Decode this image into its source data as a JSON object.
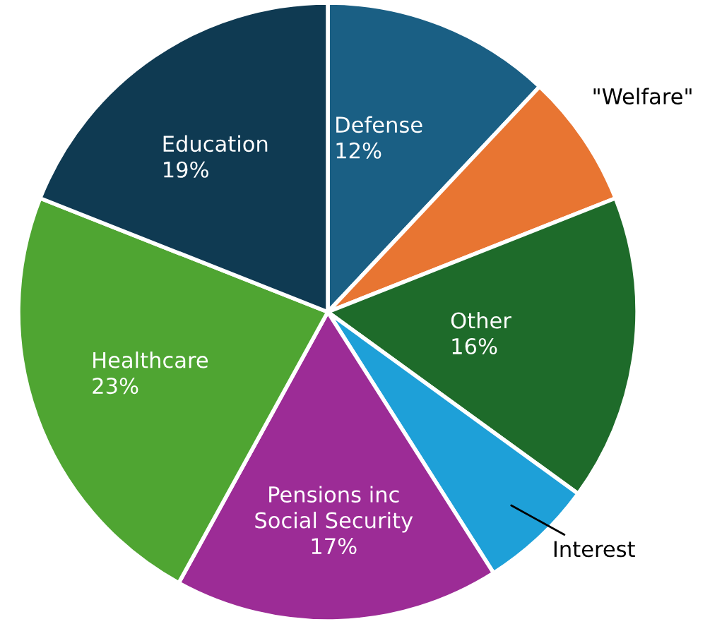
{
  "chart_data": {
    "type": "pie",
    "categories": [
      "Defense",
      "\"Welfare\"",
      "Other",
      "Interest",
      "Pensions inc\nSocial Security",
      "Healthcare",
      "Education"
    ],
    "values": [
      12,
      7,
      16,
      6,
      17,
      23,
      19
    ],
    "value_labels": [
      "12%",
      null,
      "16%",
      null,
      "17%",
      "23%",
      "19%"
    ],
    "colors": [
      "#1a5f84",
      "#e87532",
      "#1e6b2a",
      "#1ea0d8",
      "#9c2c96",
      "#4fa532",
      "#0f3a52"
    ],
    "legend": false
  }
}
